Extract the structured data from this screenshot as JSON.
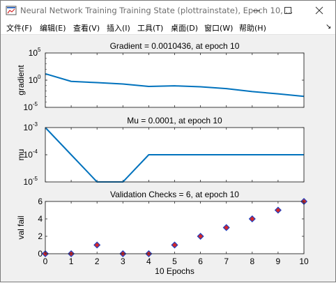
{
  "window": {
    "title": "Neural Network Training Training State (plottrainstate), Epoch 10, ...",
    "icon": "matlab-figure-icon",
    "controls": [
      "minimize-icon",
      "maximize-icon",
      "close-icon"
    ]
  },
  "menu": {
    "items": [
      {
        "label": "文件(F)"
      },
      {
        "label": "编辑(E)"
      },
      {
        "label": "查看(V)"
      },
      {
        "label": "插入(I)"
      },
      {
        "label": "工具(T)"
      },
      {
        "label": "桌面(D)"
      },
      {
        "label": "窗口(W)"
      },
      {
        "label": "帮助(H)"
      }
    ],
    "overflow_arrow": "↘"
  },
  "chart_data": [
    {
      "type": "line",
      "title": "Gradient = 0.0010436, at epoch 10",
      "ylabel": "gradient",
      "yscale": "log",
      "ylim": [
        1e-05,
        100000.0
      ],
      "yticks": [
        {
          "v": 1e-05,
          "b": "10",
          "e": "-5"
        },
        {
          "v": 1,
          "b": "10",
          "e": "0"
        },
        {
          "v": 100000.0,
          "b": "10",
          "e": "5"
        }
      ],
      "xlim": [
        0,
        10
      ],
      "x": [
        0,
        1,
        2,
        3,
        4,
        5,
        6,
        7,
        8,
        9,
        10
      ],
      "y": [
        15,
        0.6,
        0.35,
        0.2,
        0.07,
        0.09,
        0.06,
        0.028,
        0.008,
        0.003,
        0.0010436
      ],
      "color": "#0072bd"
    },
    {
      "type": "line",
      "title": "Mu = 0.0001, at epoch 10",
      "ylabel": "mu",
      "yscale": "log",
      "ylim": [
        1e-05,
        0.001
      ],
      "yticks": [
        {
          "v": 1e-05,
          "b": "10",
          "e": "-5"
        },
        {
          "v": 0.0001,
          "b": "10",
          "e": "-4"
        },
        {
          "v": 0.001,
          "b": "10",
          "e": "-3"
        }
      ],
      "xlim": [
        0,
        10
      ],
      "x": [
        0,
        1,
        2,
        3,
        4,
        5,
        6,
        7,
        8,
        9,
        10
      ],
      "y": [
        0.001,
        0.0001,
        1e-05,
        1e-05,
        0.0001,
        0.0001,
        0.0001,
        0.0001,
        0.0001,
        0.0001,
        0.0001
      ],
      "color": "#0072bd"
    },
    {
      "type": "scatter",
      "title": "Validation Checks = 6, at epoch 10",
      "ylabel": "val fail",
      "xlabel": "10 Epochs",
      "yscale": "linear",
      "ylim": [
        0,
        6
      ],
      "yticks": [
        {
          "v": 0,
          "b": "0"
        },
        {
          "v": 2,
          "b": "2"
        },
        {
          "v": 4,
          "b": "4"
        },
        {
          "v": 6,
          "b": "6"
        }
      ],
      "xlim": [
        0,
        10
      ],
      "xticks": [
        0,
        1,
        2,
        3,
        4,
        5,
        6,
        7,
        8,
        9,
        10
      ],
      "x": [
        0,
        1,
        2,
        3,
        4,
        5,
        6,
        7,
        8,
        9,
        10
      ],
      "y": [
        0,
        0,
        1,
        0,
        0,
        1,
        2,
        3,
        4,
        5,
        6
      ],
      "marker": "diamond",
      "marker_fill": "#d62728",
      "marker_edge": "#1f3fbf"
    }
  ]
}
